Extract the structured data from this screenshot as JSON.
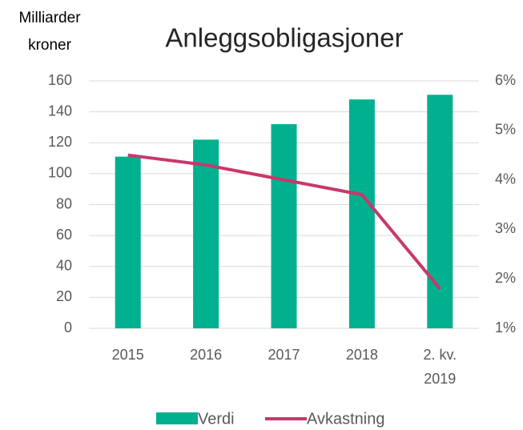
{
  "chart_data": {
    "type": "bar_line",
    "title": "Anleggsobligasjoner",
    "y_label": "Milliarder\nkroner",
    "categories": [
      "2015",
      "2016",
      "2017",
      "2018",
      "2. kv.\n2019"
    ],
    "series": [
      {
        "name": "Verdi",
        "type": "bar",
        "color": "#00b08e",
        "values": [
          111,
          122,
          132,
          148,
          151
        ]
      },
      {
        "name": "Avkastning",
        "type": "line",
        "axis": "y2",
        "color": "#c8386c",
        "values": [
          4.5,
          4.3,
          4.0,
          3.7,
          1.8
        ]
      }
    ],
    "ylim": [
      0,
      160
    ],
    "yticks": [
      0,
      20,
      40,
      60,
      80,
      100,
      120,
      140,
      160
    ],
    "y2lim": [
      1,
      6
    ],
    "y2ticks": [
      {
        "value": 1,
        "label": "1%"
      },
      {
        "value": 2,
        "label": "2%"
      },
      {
        "value": 3,
        "label": "3%"
      },
      {
        "value": 4,
        "label": "4%"
      },
      {
        "value": 5,
        "label": "5%"
      },
      {
        "value": 6,
        "label": "6%"
      }
    ],
    "grid": true,
    "legend": "bottom"
  }
}
